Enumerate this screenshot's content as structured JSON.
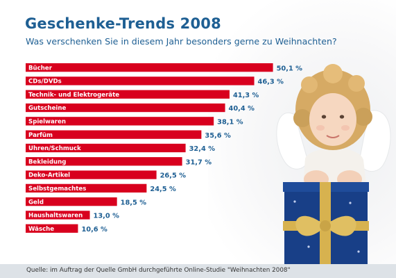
{
  "header": {
    "title": "Geschenke-Trends 2008",
    "subtitle": "Was verschenken Sie in diesem Jahr besonders gerne zu Weihnachten?"
  },
  "footer": {
    "source": "Quelle: im Auftrag der Quelle GmbH durchgeführte Online-Studie \"Weihnachten 2008\""
  },
  "colors": {
    "bar": "#d8001e",
    "text_accent": "#1e5f93",
    "footer_bg": "#dde2e7"
  },
  "chart_data": {
    "type": "bar",
    "orientation": "horizontal",
    "title": "Geschenke-Trends 2008",
    "subtitle": "Was verschenken Sie in diesem Jahr besonders gerne zu Weihnachten?",
    "categories": [
      "Bücher",
      "CDs/DVDs",
      "Technik- und Elektrogeräte",
      "Gutscheine",
      "Spielwaren",
      "Parfüm",
      "Uhren/Schmuck",
      "Bekleidung",
      "Deko-Artikel",
      "Selbstgemachtes",
      "Geld",
      "Haushaltswaren",
      "Wäsche"
    ],
    "values": [
      50.1,
      46.3,
      41.3,
      40.4,
      38.1,
      35.6,
      32.4,
      31.7,
      26.5,
      24.5,
      18.5,
      13.0,
      10.6
    ],
    "value_labels": [
      "50,1 %",
      "46,3 %",
      "41,3 %",
      "40,4 %",
      "38,1 %",
      "35,6 %",
      "32,4 %",
      "31,7 %",
      "26,5 %",
      "24,5 %",
      "18,5 %",
      "13,0 %",
      "10,6 %"
    ],
    "unit": "%",
    "xlim": [
      0,
      51
    ],
    "grid": false,
    "legend": "none"
  }
}
